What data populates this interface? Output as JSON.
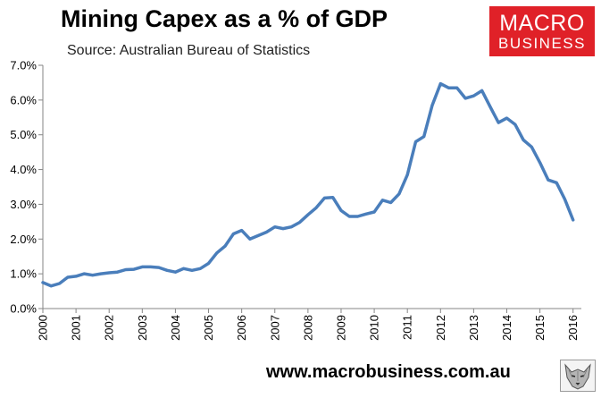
{
  "header": {
    "title": "Mining Capex as a % of GDP",
    "subtitle": "Source: Australian Bureau of Statistics"
  },
  "logo": {
    "line1": "MACRO",
    "line2": "BUSINESS",
    "bg_color": "#e02128"
  },
  "footer": {
    "url": "www.macrobusiness.com.au",
    "icon": "wolf-icon"
  },
  "chart_data": {
    "type": "line",
    "title": "Mining Capex as a % of GDP",
    "xlabel": "",
    "ylabel": "",
    "xlim": [
      2000,
      2016.25
    ],
    "ylim": [
      0,
      7
    ],
    "ytick_labels": [
      "0.0%",
      "1.0%",
      "2.0%",
      "3.0%",
      "4.0%",
      "5.0%",
      "6.0%",
      "7.0%"
    ],
    "xtick_labels": [
      "2000",
      "2001",
      "2002",
      "2003",
      "2004",
      "2005",
      "2006",
      "2007",
      "2008",
      "2009",
      "2010",
      "2011",
      "2012",
      "2013",
      "2014",
      "2015",
      "2016"
    ],
    "grid": false,
    "series": [
      {
        "name": "Mining Capex % of GDP",
        "color": "#4a7ebb",
        "x": [
          2000,
          2000.25,
          2000.5,
          2000.75,
          2001,
          2001.25,
          2001.5,
          2001.75,
          2002,
          2002.25,
          2002.5,
          2002.75,
          2003,
          2003.25,
          2003.5,
          2003.75,
          2004,
          2004.25,
          2004.5,
          2004.75,
          2005,
          2005.25,
          2005.5,
          2005.75,
          2006,
          2006.25,
          2006.5,
          2006.75,
          2007,
          2007.25,
          2007.5,
          2007.75,
          2008,
          2008.25,
          2008.5,
          2008.75,
          2009,
          2009.25,
          2009.5,
          2009.75,
          2010,
          2010.25,
          2010.5,
          2010.75,
          2011,
          2011.25,
          2011.5,
          2011.75,
          2012,
          2012.25,
          2012.5,
          2012.75,
          2013,
          2013.25,
          2013.5,
          2013.75,
          2014,
          2014.25,
          2014.5,
          2014.75,
          2015,
          2015.25,
          2015.5,
          2015.75,
          2016
        ],
        "values": [
          0.75,
          0.65,
          0.72,
          0.9,
          0.93,
          1.0,
          0.96,
          1.0,
          1.03,
          1.05,
          1.12,
          1.13,
          1.2,
          1.2,
          1.18,
          1.1,
          1.05,
          1.15,
          1.1,
          1.15,
          1.3,
          1.6,
          1.8,
          2.15,
          2.25,
          2.0,
          2.1,
          2.2,
          2.35,
          2.3,
          2.35,
          2.48,
          2.7,
          2.9,
          3.18,
          3.2,
          2.82,
          2.65,
          2.65,
          2.72,
          2.78,
          3.12,
          3.05,
          3.3,
          3.85,
          4.8,
          4.95,
          5.85,
          6.47,
          6.35,
          6.35,
          6.05,
          6.12,
          6.27,
          5.8,
          5.35,
          5.48,
          5.3,
          4.85,
          4.65,
          4.2,
          3.7,
          3.62,
          3.15,
          2.55
        ]
      }
    ]
  }
}
